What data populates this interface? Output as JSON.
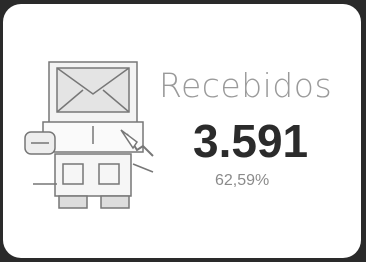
{
  "card": {
    "title": "Recebidos",
    "count": "3.591",
    "percentage": "62,59%"
  }
}
